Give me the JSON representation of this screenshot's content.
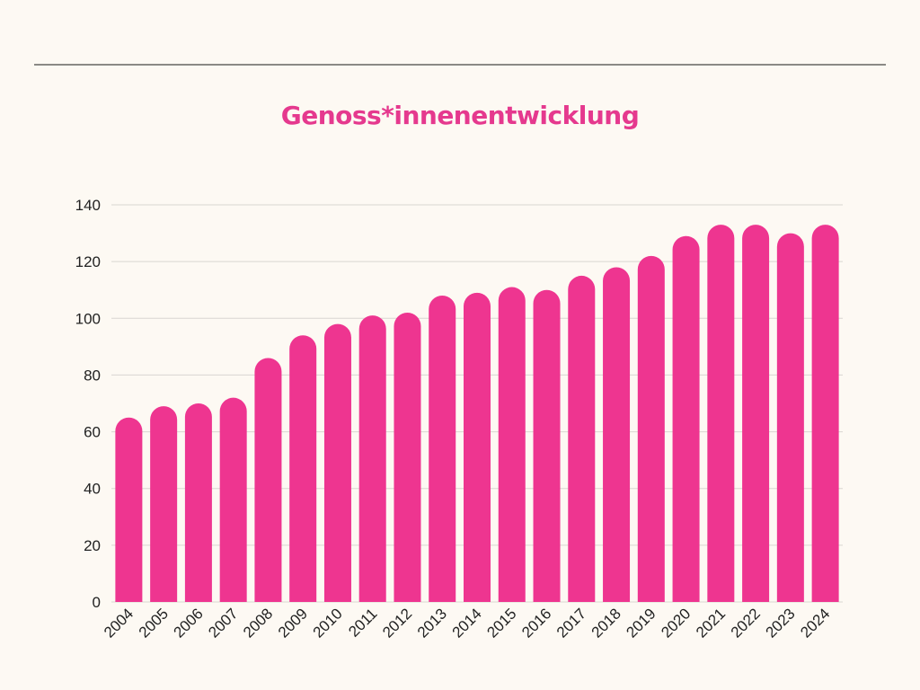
{
  "chart_data": {
    "type": "bar",
    "title": "Genoss*innenentwicklung",
    "xlabel": "",
    "ylabel": "",
    "categories": [
      "2004",
      "2005",
      "2006",
      "2007",
      "2008",
      "2009",
      "2010",
      "2011",
      "2012",
      "2013",
      "2014",
      "2015",
      "2016",
      "2017",
      "2018",
      "2019",
      "2020",
      "2021",
      "2022",
      "2023",
      "2024"
    ],
    "values": [
      65,
      69,
      70,
      72,
      86,
      94,
      98,
      101,
      102,
      108,
      109,
      111,
      110,
      115,
      118,
      122,
      129,
      133,
      133,
      130,
      133
    ],
    "ylim": [
      0,
      140
    ],
    "yticks": [
      0,
      20,
      40,
      60,
      80,
      100,
      120,
      140
    ],
    "grid": true,
    "legend": "none",
    "colors": {
      "bar": "#ee3590",
      "title": "#e5398e"
    }
  }
}
